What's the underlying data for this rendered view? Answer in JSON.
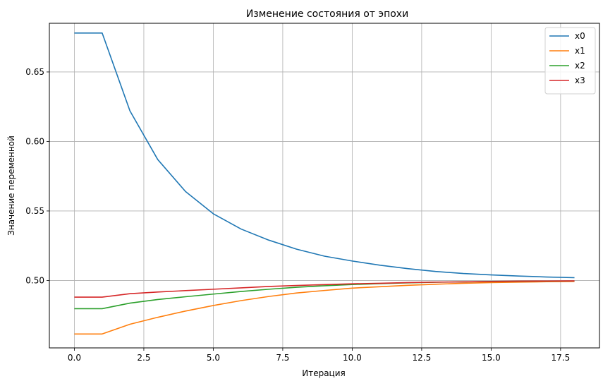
{
  "chart_data": {
    "type": "line",
    "title": "Изменение состояния от эпохи",
    "xlabel": "Итерация",
    "ylabel": "Значение переменной",
    "xlim": [
      -0.9,
      18.9
    ],
    "ylim": [
      0.4515,
      0.685
    ],
    "grid": true,
    "legend_position": "top-right",
    "x_ticks": [
      0.0,
      2.5,
      5.0,
      7.5,
      10.0,
      12.5,
      15.0,
      17.5
    ],
    "x_tick_labels": [
      "0.0",
      "2.5",
      "5.0",
      "7.5",
      "10.0",
      "12.5",
      "15.0",
      "17.5"
    ],
    "y_ticks": [
      0.5,
      0.55,
      0.6,
      0.65
    ],
    "y_tick_labels": [
      "0.50",
      "0.55",
      "0.60",
      "0.65"
    ],
    "x": [
      0,
      1,
      2,
      3,
      4,
      5,
      6,
      7,
      8,
      9,
      10,
      11,
      12,
      13,
      14,
      15,
      16,
      17,
      18
    ],
    "series": [
      {
        "name": "x0",
        "color": "#1f77b4",
        "values": [
          0.678,
          0.678,
          0.622,
          0.587,
          0.564,
          0.548,
          0.537,
          0.529,
          0.5225,
          0.5175,
          0.514,
          0.511,
          0.5085,
          0.5065,
          0.505,
          0.504,
          0.5032,
          0.5025,
          0.502
        ]
      },
      {
        "name": "x1",
        "color": "#ff7f0e",
        "values": [
          0.4615,
          0.4615,
          0.4685,
          0.4735,
          0.478,
          0.482,
          0.4855,
          0.4885,
          0.491,
          0.4928,
          0.4945,
          0.4955,
          0.4965,
          0.4973,
          0.498,
          0.4985,
          0.4988,
          0.4991,
          0.4993
        ]
      },
      {
        "name": "x2",
        "color": "#2ca02c",
        "values": [
          0.4797,
          0.4797,
          0.4837,
          0.4863,
          0.4883,
          0.4902,
          0.4921,
          0.4937,
          0.4951,
          0.4962,
          0.4971,
          0.4977,
          0.4983,
          0.4987,
          0.499,
          0.4992,
          0.4994,
          0.4995,
          0.4996
        ]
      },
      {
        "name": "x3",
        "color": "#d62728",
        "values": [
          0.488,
          0.488,
          0.4905,
          0.4917,
          0.4927,
          0.4937,
          0.4947,
          0.4957,
          0.4964,
          0.497,
          0.4976,
          0.498,
          0.4985,
          0.4988,
          0.499,
          0.4993,
          0.4995,
          0.4996,
          0.4997
        ]
      }
    ]
  }
}
